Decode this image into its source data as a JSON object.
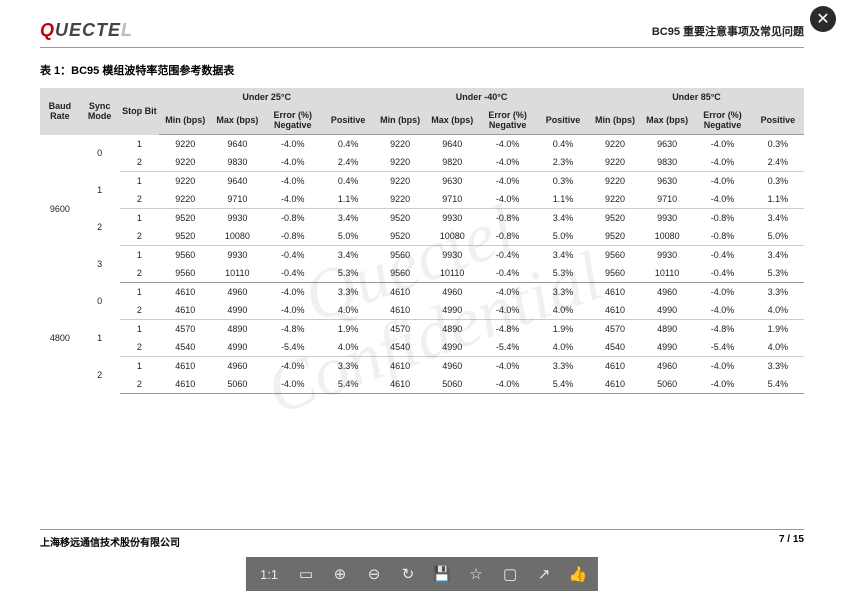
{
  "header": {
    "logo_p1": "Q",
    "logo_p2": "UECTE",
    "logo_p3": "L",
    "doc_title": "BC95 重要注意事项及常见问题"
  },
  "table": {
    "caption": "表 1：BC95 模组波特率范围参考数据表",
    "top_headers": {
      "baud_rate": "Baud Rate",
      "sync_mode": "Sync Mode",
      "stop_bit": "Stop Bit",
      "under_25": "Under 25°C",
      "under_m40": "Under -40°C",
      "under_85": "Under 85°C"
    },
    "sub_headers": {
      "min": "Min (bps)",
      "max": "Max (bps)",
      "err_neg": "Error (%) Negative",
      "positive": "Positive"
    },
    "rows": [
      {
        "baud": "9600",
        "sync": "0",
        "stop": "1",
        "t25": [
          "9220",
          "9640",
          "-4.0%",
          "0.4%"
        ],
        "tm40": [
          "9220",
          "9640",
          "-4.0%",
          "0.4%"
        ],
        "t85": [
          "9220",
          "9630",
          "-4.0%",
          "0.3%"
        ]
      },
      {
        "baud": "",
        "sync": "",
        "stop": "2",
        "t25": [
          "9220",
          "9830",
          "-4.0%",
          "2.4%"
        ],
        "tm40": [
          "9220",
          "9820",
          "-4.0%",
          "2.3%"
        ],
        "t85": [
          "9220",
          "9830",
          "-4.0%",
          "2.4%"
        ]
      },
      {
        "baud": "",
        "sync": "1",
        "stop": "1",
        "t25": [
          "9220",
          "9640",
          "-4.0%",
          "0.4%"
        ],
        "tm40": [
          "9220",
          "9630",
          "-4.0%",
          "0.3%"
        ],
        "t85": [
          "9220",
          "9630",
          "-4.0%",
          "0.3%"
        ]
      },
      {
        "baud": "",
        "sync": "",
        "stop": "2",
        "t25": [
          "9220",
          "9710",
          "-4.0%",
          "1.1%"
        ],
        "tm40": [
          "9220",
          "9710",
          "-4.0%",
          "1.1%"
        ],
        "t85": [
          "9220",
          "9710",
          "-4.0%",
          "1.1%"
        ]
      },
      {
        "baud": "",
        "sync": "2",
        "stop": "1",
        "t25": [
          "9520",
          "9930",
          "-0.8%",
          "3.4%"
        ],
        "tm40": [
          "9520",
          "9930",
          "-0.8%",
          "3.4%"
        ],
        "t85": [
          "9520",
          "9930",
          "-0.8%",
          "3.4%"
        ]
      },
      {
        "baud": "",
        "sync": "",
        "stop": "2",
        "t25": [
          "9520",
          "10080",
          "-0.8%",
          "5.0%"
        ],
        "tm40": [
          "9520",
          "10080",
          "-0.8%",
          "5.0%"
        ],
        "t85": [
          "9520",
          "10080",
          "-0.8%",
          "5.0%"
        ]
      },
      {
        "baud": "",
        "sync": "3",
        "stop": "1",
        "t25": [
          "9560",
          "9930",
          "-0.4%",
          "3.4%"
        ],
        "tm40": [
          "9560",
          "9930",
          "-0.4%",
          "3.4%"
        ],
        "t85": [
          "9560",
          "9930",
          "-0.4%",
          "3.4%"
        ]
      },
      {
        "baud": "",
        "sync": "",
        "stop": "2",
        "t25": [
          "9560",
          "10110",
          "-0.4%",
          "5.3%"
        ],
        "tm40": [
          "9560",
          "10110",
          "-0.4%",
          "5.3%"
        ],
        "t85": [
          "9560",
          "10110",
          "-0.4%",
          "5.3%"
        ]
      },
      {
        "baud": "4800",
        "sync": "0",
        "stop": "1",
        "t25": [
          "4610",
          "4960",
          "-4.0%",
          "3.3%"
        ],
        "tm40": [
          "4610",
          "4960",
          "-4.0%",
          "3.3%"
        ],
        "t85": [
          "4610",
          "4960",
          "-4.0%",
          "3.3%"
        ]
      },
      {
        "baud": "",
        "sync": "",
        "stop": "2",
        "t25": [
          "4610",
          "4990",
          "-4.0%",
          "4.0%"
        ],
        "tm40": [
          "4610",
          "4990",
          "-4.0%",
          "4.0%"
        ],
        "t85": [
          "4610",
          "4990",
          "-4.0%",
          "4.0%"
        ]
      },
      {
        "baud": "",
        "sync": "1",
        "stop": "1",
        "t25": [
          "4570",
          "4890",
          "-4.8%",
          "1.9%"
        ],
        "tm40": [
          "4570",
          "4890",
          "-4.8%",
          "1.9%"
        ],
        "t85": [
          "4570",
          "4890",
          "-4.8%",
          "1.9%"
        ]
      },
      {
        "baud": "",
        "sync": "",
        "stop": "2",
        "t25": [
          "4540",
          "4990",
          "-5.4%",
          "4.0%"
        ],
        "tm40": [
          "4540",
          "4990",
          "-5.4%",
          "4.0%"
        ],
        "t85": [
          "4540",
          "4990",
          "-5.4%",
          "4.0%"
        ]
      },
      {
        "baud": "",
        "sync": "2",
        "stop": "1",
        "t25": [
          "4610",
          "4960",
          "-4.0%",
          "3.3%"
        ],
        "tm40": [
          "4610",
          "4960",
          "-4.0%",
          "3.3%"
        ],
        "t85": [
          "4610",
          "4960",
          "-4.0%",
          "3.3%"
        ]
      },
      {
        "baud": "",
        "sync": "",
        "stop": "2",
        "t25": [
          "4610",
          "5060",
          "-4.0%",
          "5.4%"
        ],
        "tm40": [
          "4610",
          "5060",
          "-4.0%",
          "5.4%"
        ],
        "t85": [
          "4610",
          "5060",
          "-4.0%",
          "5.4%"
        ]
      }
    ]
  },
  "watermark": {
    "l1": "Quectel",
    "l2": "Confidential"
  },
  "footer": {
    "company": "上海移远通信技术股份有限公司",
    "page": "7 / 15"
  },
  "toolbar": {
    "ratio": "1:1",
    "icons": {
      "full": "▭",
      "zoom_in": "⊕",
      "zoom_out": "⊖",
      "rotate": "↻",
      "save": "💾",
      "star": "☆",
      "page": "▢",
      "share": "↗",
      "like": "👍"
    }
  },
  "close_label": "✕"
}
